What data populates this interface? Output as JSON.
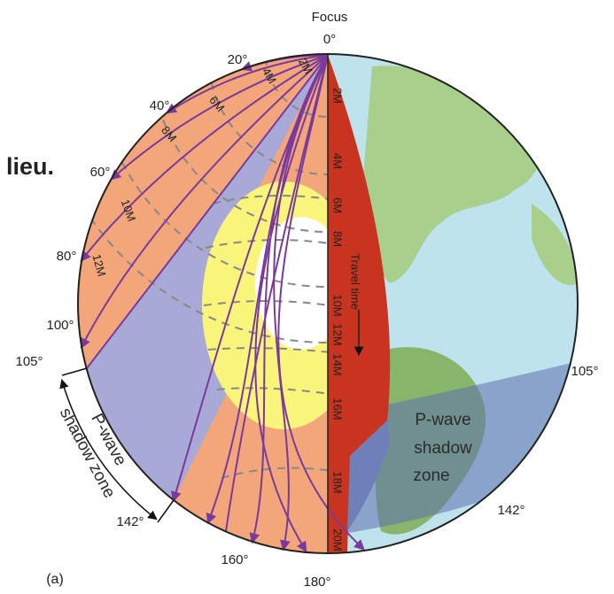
{
  "heading_fragment": "lieu.",
  "focus": "Focus",
  "angle_labels": [
    "0°",
    "20°",
    "40°",
    "60°",
    "80°",
    "100°",
    "105°",
    "142°",
    "160°",
    "180°"
  ],
  "right_angle_labels": [
    "105°",
    "142°"
  ],
  "travel_times_mantle": [
    "2M",
    "4M",
    "6M",
    "8M",
    "10M",
    "12M"
  ],
  "travel_times_axis": [
    "2M",
    "4M",
    "6M",
    "8M",
    "10M",
    "12M",
    "14M",
    "16M",
    "18M",
    "20M"
  ],
  "travel_time_label": "Travel time",
  "shadow_zone_left": [
    "P-wave",
    "shadow zone"
  ],
  "shadow_zone_right": [
    "P-wave",
    "shadow",
    "zone"
  ],
  "panel_label": "(a)"
}
